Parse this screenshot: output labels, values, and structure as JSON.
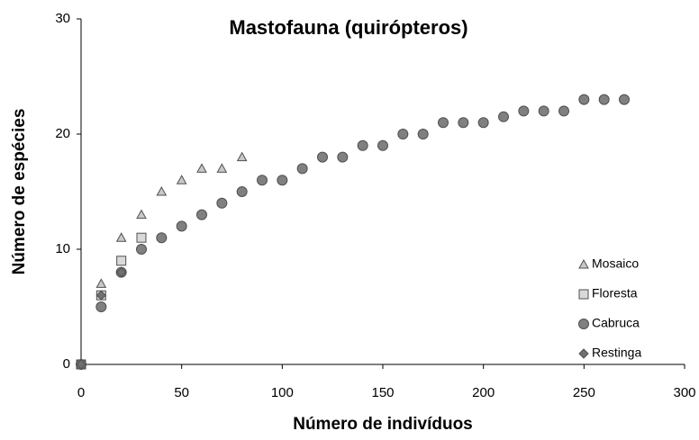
{
  "chart_data": {
    "type": "scatter",
    "title": "Mastofauna (quirópteros)",
    "xlabel": "Número de indivíduos",
    "ylabel": "Número de espécies",
    "xlim": [
      0,
      300
    ],
    "xticks": [
      0,
      50,
      100,
      150,
      200,
      250,
      300
    ],
    "ylim": [
      0,
      30
    ],
    "yticks": [
      0,
      10,
      20,
      30
    ],
    "grid": false,
    "legend": "lower right",
    "series": [
      {
        "name": "Mosaico",
        "marker": "triangle",
        "color": "#c8c8c8",
        "x": [
          0,
          10,
          20,
          30,
          40,
          50,
          60,
          70,
          80
        ],
        "values": [
          0,
          7,
          11,
          13,
          15,
          16,
          17,
          17,
          18
        ]
      },
      {
        "name": "Floresta",
        "marker": "square",
        "color": "#d9d9d9",
        "x": [
          0,
          10,
          20,
          30
        ],
        "values": [
          0,
          6,
          9,
          11
        ]
      },
      {
        "name": "Cabruca",
        "marker": "circle",
        "color": "#808080",
        "x": [
          0,
          10,
          20,
          30,
          40,
          50,
          60,
          70,
          80,
          90,
          100,
          110,
          120,
          130,
          140,
          150,
          160,
          170,
          180,
          190,
          200,
          210,
          220,
          230,
          240,
          250,
          260,
          270
        ],
        "values": [
          0,
          5,
          8,
          10,
          11,
          12,
          13,
          14,
          15,
          16,
          16,
          17,
          18,
          18,
          19,
          19,
          20,
          20,
          21,
          21,
          21,
          21.5,
          22,
          22,
          22,
          23,
          23,
          23
        ]
      },
      {
        "name": "Restinga",
        "marker": "diamond",
        "color": "#707070",
        "x": [
          0,
          10,
          20
        ],
        "values": [
          0,
          6,
          8
        ]
      }
    ]
  }
}
